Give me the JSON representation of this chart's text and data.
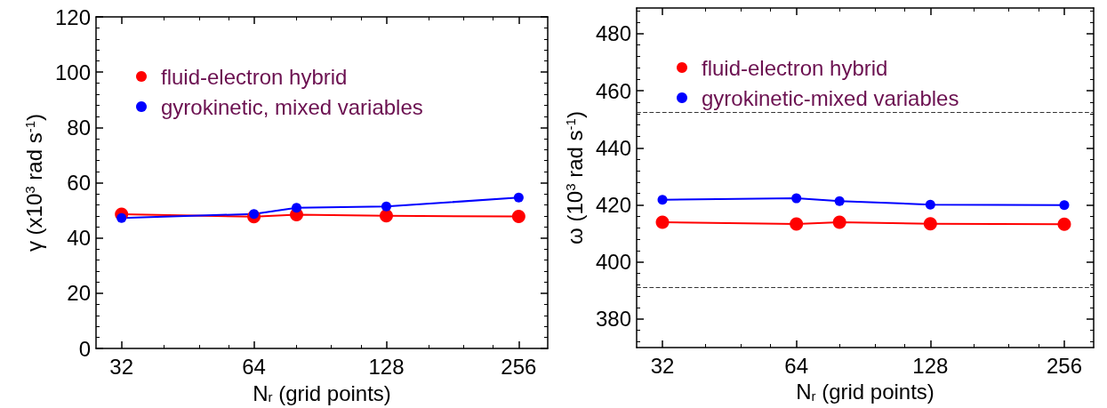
{
  "chart_data": [
    {
      "type": "line",
      "ylabel": "γ (x10$^{3}$ rad s$^{-1}$)",
      "xlabel": "N$_{r}$ (grid points)",
      "log": "x",
      "xlim": [
        28,
        298
      ],
      "xticks": [
        32,
        64,
        128,
        256
      ],
      "ylim": [
        0,
        120
      ],
      "yticks": [
        0,
        20,
        40,
        60,
        80,
        100,
        120
      ],
      "grid": false,
      "legend": "top left",
      "marker": "circle",
      "line_style": "solid",
      "series": [
        {
          "name": "fluid-electron hybrid",
          "color": "#ff0000",
          "x": [
            32,
            64,
            80,
            128,
            256
          ],
          "values": [
            48.6,
            47.7,
            48.4,
            48.0,
            47.8
          ]
        },
        {
          "name": "gyrokinetic, mixed variables",
          "color": "#0000ff",
          "x": [
            32,
            64,
            80,
            128,
            256
          ],
          "values": [
            47.2,
            48.7,
            50.9,
            51.4,
            54.6
          ]
        }
      ]
    },
    {
      "type": "line",
      "ylabel": "ω (10$^{3}$ rad s$^{-1}$)",
      "xlabel": "N$_{r}$ (grid points)",
      "log": "x",
      "xlim": [
        28,
        298
      ],
      "xticks": [
        32,
        64,
        128,
        256
      ],
      "ylim": [
        370,
        489
      ],
      "yticks": [
        380,
        400,
        420,
        440,
        460,
        480
      ],
      "grid": false,
      "legend": "top left",
      "marker": "circle",
      "line_style": "solid",
      "ref_lines": [
        {
          "axis": "y",
          "value": 452.6,
          "color": "#333333",
          "line_style": "dashed"
        },
        {
          "axis": "y",
          "value": 391.1,
          "color": "#333333",
          "line_style": "dashed"
        }
      ],
      "series": [
        {
          "name": "fluid-electron hybrid",
          "color": "#ff0000",
          "x": [
            32,
            64,
            80,
            128,
            256
          ],
          "values": [
            413.9,
            413.3,
            413.9,
            413.4,
            413.2
          ]
        },
        {
          "name": "gyrokinetic-mixed variables",
          "color": "#0000ff",
          "x": [
            32,
            64,
            80,
            128,
            256
          ],
          "values": [
            421.8,
            422.3,
            421.3,
            420.1,
            419.9
          ]
        }
      ]
    }
  ]
}
